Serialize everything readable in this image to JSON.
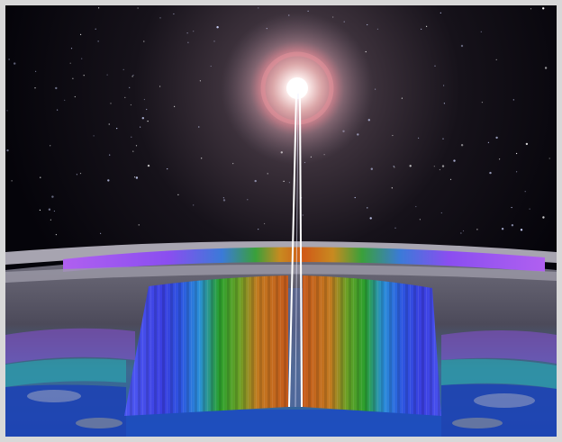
{
  "scene": {
    "subject": "sun-over-earth-limb",
    "palette": {
      "space": "#05040a",
      "sun_core": "#ffffff",
      "sun_ring": "#e2909a",
      "limb_band": "#b9b6c2",
      "violet_band": "#a24df0",
      "sheet_blue": "#3a4cf0",
      "sheet_green": "#2aa02e",
      "sheet_orange": "#d06a1a",
      "earth_blue": "#1c3fb6",
      "earth_teal": "#29a7b0",
      "beam": "#ffffff"
    },
    "frame_color": "#d8d8d8"
  }
}
